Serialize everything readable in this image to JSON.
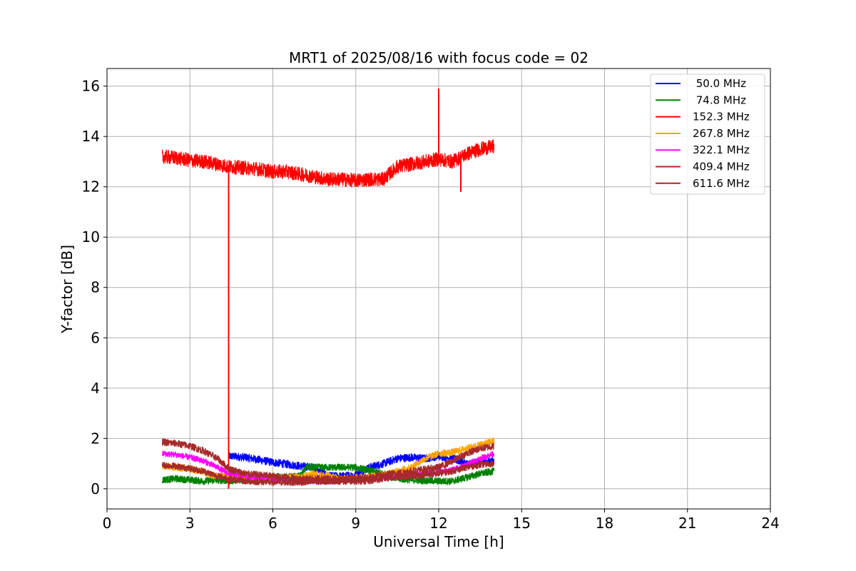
{
  "chart_data": {
    "type": "line",
    "title": "MRT1 of 2025/08/16 with focus code = 02",
    "xlabel": "Universal Time [h]",
    "ylabel": "Y-factor [dB]",
    "xlim": [
      0,
      24
    ],
    "ylim": [
      -0.8,
      16.7
    ],
    "xticks": [
      0,
      3,
      6,
      9,
      12,
      15,
      18,
      21,
      24
    ],
    "yticks": [
      0,
      2,
      4,
      6,
      8,
      10,
      12,
      14,
      16
    ],
    "grid": true,
    "legend_position": "top-right",
    "series": [
      {
        "name": " 50.0 MHz",
        "color": "#0000ff",
        "noise": 0.16,
        "points": [
          [
            4.4,
            1.3
          ],
          [
            5,
            1.25
          ],
          [
            6,
            1.05
          ],
          [
            7,
            0.9
          ],
          [
            7.5,
            0.85
          ],
          [
            8,
            0.5
          ],
          [
            8.5,
            0.5
          ],
          [
            9,
            0.55
          ],
          [
            9.5,
            0.85
          ],
          [
            10,
            1.0
          ],
          [
            10.5,
            1.2
          ],
          [
            11,
            1.25
          ],
          [
            11.5,
            1.2
          ],
          [
            12,
            1.3
          ],
          [
            12.5,
            1.2
          ],
          [
            13,
            1.0
          ],
          [
            13.5,
            1.05
          ],
          [
            14,
            1.1
          ]
        ]
      },
      {
        "name": " 74.8 MHz",
        "color": "#008000",
        "noise": 0.14,
        "points": [
          [
            2,
            0.35
          ],
          [
            2.5,
            0.4
          ],
          [
            3,
            0.35
          ],
          [
            3.5,
            0.3
          ],
          [
            4,
            0.35
          ],
          [
            4.4,
            0.3
          ],
          [
            5,
            0.4
          ],
          [
            6,
            0.45
          ],
          [
            7,
            0.5
          ],
          [
            7.2,
            0.85
          ],
          [
            8,
            0.85
          ],
          [
            9,
            0.85
          ],
          [
            10,
            0.6
          ],
          [
            10.5,
            0.4
          ],
          [
            11,
            0.35
          ],
          [
            12,
            0.3
          ],
          [
            12.5,
            0.3
          ],
          [
            13,
            0.45
          ],
          [
            13.5,
            0.6
          ],
          [
            14,
            0.7
          ]
        ]
      },
      {
        "name": "152.3 MHz",
        "color": "#ff0000",
        "noise": 0.28,
        "points": [
          [
            2,
            13.2
          ],
          [
            2.5,
            13.15
          ],
          [
            3,
            13.05
          ],
          [
            3.5,
            13.0
          ],
          [
            4,
            12.9
          ],
          [
            4.4,
            12.8
          ],
          [
            5,
            12.75
          ],
          [
            5.5,
            12.7
          ],
          [
            6,
            12.6
          ],
          [
            6.5,
            12.6
          ],
          [
            7,
            12.5
          ],
          [
            7.5,
            12.4
          ],
          [
            8,
            12.3
          ],
          [
            8.5,
            12.3
          ],
          [
            9,
            12.25
          ],
          [
            9.5,
            12.3
          ],
          [
            10,
            12.3
          ],
          [
            10.5,
            12.8
          ],
          [
            11,
            12.9
          ],
          [
            11.5,
            13.0
          ],
          [
            12,
            13.1
          ],
          [
            12.5,
            13.0
          ],
          [
            13,
            13.3
          ],
          [
            13.5,
            13.5
          ],
          [
            14,
            13.6
          ]
        ],
        "spikes": [
          [
            4.4,
            0.0
          ],
          [
            12.0,
            15.9
          ],
          [
            12.8,
            11.8
          ]
        ]
      },
      {
        "name": "267.8 MHz",
        "color": "#ffa500",
        "noise": 0.14,
        "points": [
          [
            2,
            0.9
          ],
          [
            3,
            0.8
          ],
          [
            4,
            0.5
          ],
          [
            5,
            0.45
          ],
          [
            6,
            0.45
          ],
          [
            7,
            0.45
          ],
          [
            7.5,
            0.6
          ],
          [
            8,
            0.5
          ],
          [
            8.5,
            0.4
          ],
          [
            9,
            0.45
          ],
          [
            10,
            0.55
          ],
          [
            11,
            0.85
          ],
          [
            11.5,
            1.2
          ],
          [
            12,
            1.4
          ],
          [
            12.5,
            1.45
          ],
          [
            13,
            1.6
          ],
          [
            13.5,
            1.75
          ],
          [
            14,
            1.9
          ]
        ]
      },
      {
        "name": "322.1 MHz",
        "color": "#ff00ff",
        "noise": 0.12,
        "points": [
          [
            2,
            1.4
          ],
          [
            2.5,
            1.35
          ],
          [
            3,
            1.25
          ],
          [
            3.5,
            1.1
          ],
          [
            4,
            0.85
          ],
          [
            4.4,
            0.6
          ],
          [
            5,
            0.5
          ],
          [
            6,
            0.4
          ],
          [
            7,
            0.3
          ],
          [
            8,
            0.3
          ],
          [
            8.5,
            0.35
          ],
          [
            9,
            0.35
          ],
          [
            9.5,
            0.4
          ],
          [
            10,
            0.45
          ],
          [
            11,
            0.55
          ],
          [
            12,
            0.65
          ],
          [
            12.5,
            0.75
          ],
          [
            13,
            0.95
          ],
          [
            13.5,
            1.2
          ],
          [
            14,
            1.4
          ]
        ]
      },
      {
        "name": "409.4 MHz",
        "color": "#a52a2a",
        "noise": 0.14,
        "points": [
          [
            2,
            1.85
          ],
          [
            2.5,
            1.8
          ],
          [
            3,
            1.7
          ],
          [
            3.5,
            1.5
          ],
          [
            4,
            1.2
          ],
          [
            4.4,
            0.8
          ],
          [
            5,
            0.6
          ],
          [
            6,
            0.5
          ],
          [
            7,
            0.4
          ],
          [
            8,
            0.4
          ],
          [
            8.5,
            0.4
          ],
          [
            9,
            0.4
          ],
          [
            9.5,
            0.45
          ],
          [
            10,
            0.55
          ],
          [
            11,
            0.7
          ],
          [
            12,
            0.85
          ],
          [
            12.5,
            1.1
          ],
          [
            13,
            1.4
          ],
          [
            13.5,
            1.6
          ],
          [
            14,
            1.7
          ]
        ]
      },
      {
        "name": "611.6 MHz",
        "color": "#a52a2a",
        "noise": 0.13,
        "points": [
          [
            2,
            0.95
          ],
          [
            2.5,
            0.9
          ],
          [
            3,
            0.8
          ],
          [
            3.5,
            0.7
          ],
          [
            4,
            0.5
          ],
          [
            4.4,
            0.4
          ],
          [
            5,
            0.3
          ],
          [
            6,
            0.25
          ],
          [
            7,
            0.25
          ],
          [
            8,
            0.3
          ],
          [
            8.5,
            0.3
          ],
          [
            9,
            0.3
          ],
          [
            9.5,
            0.3
          ],
          [
            10,
            0.4
          ],
          [
            11,
            0.5
          ],
          [
            12,
            0.6
          ],
          [
            12.5,
            0.7
          ],
          [
            13,
            0.85
          ],
          [
            13.5,
            0.95
          ],
          [
            14,
            1.0
          ]
        ]
      }
    ]
  }
}
